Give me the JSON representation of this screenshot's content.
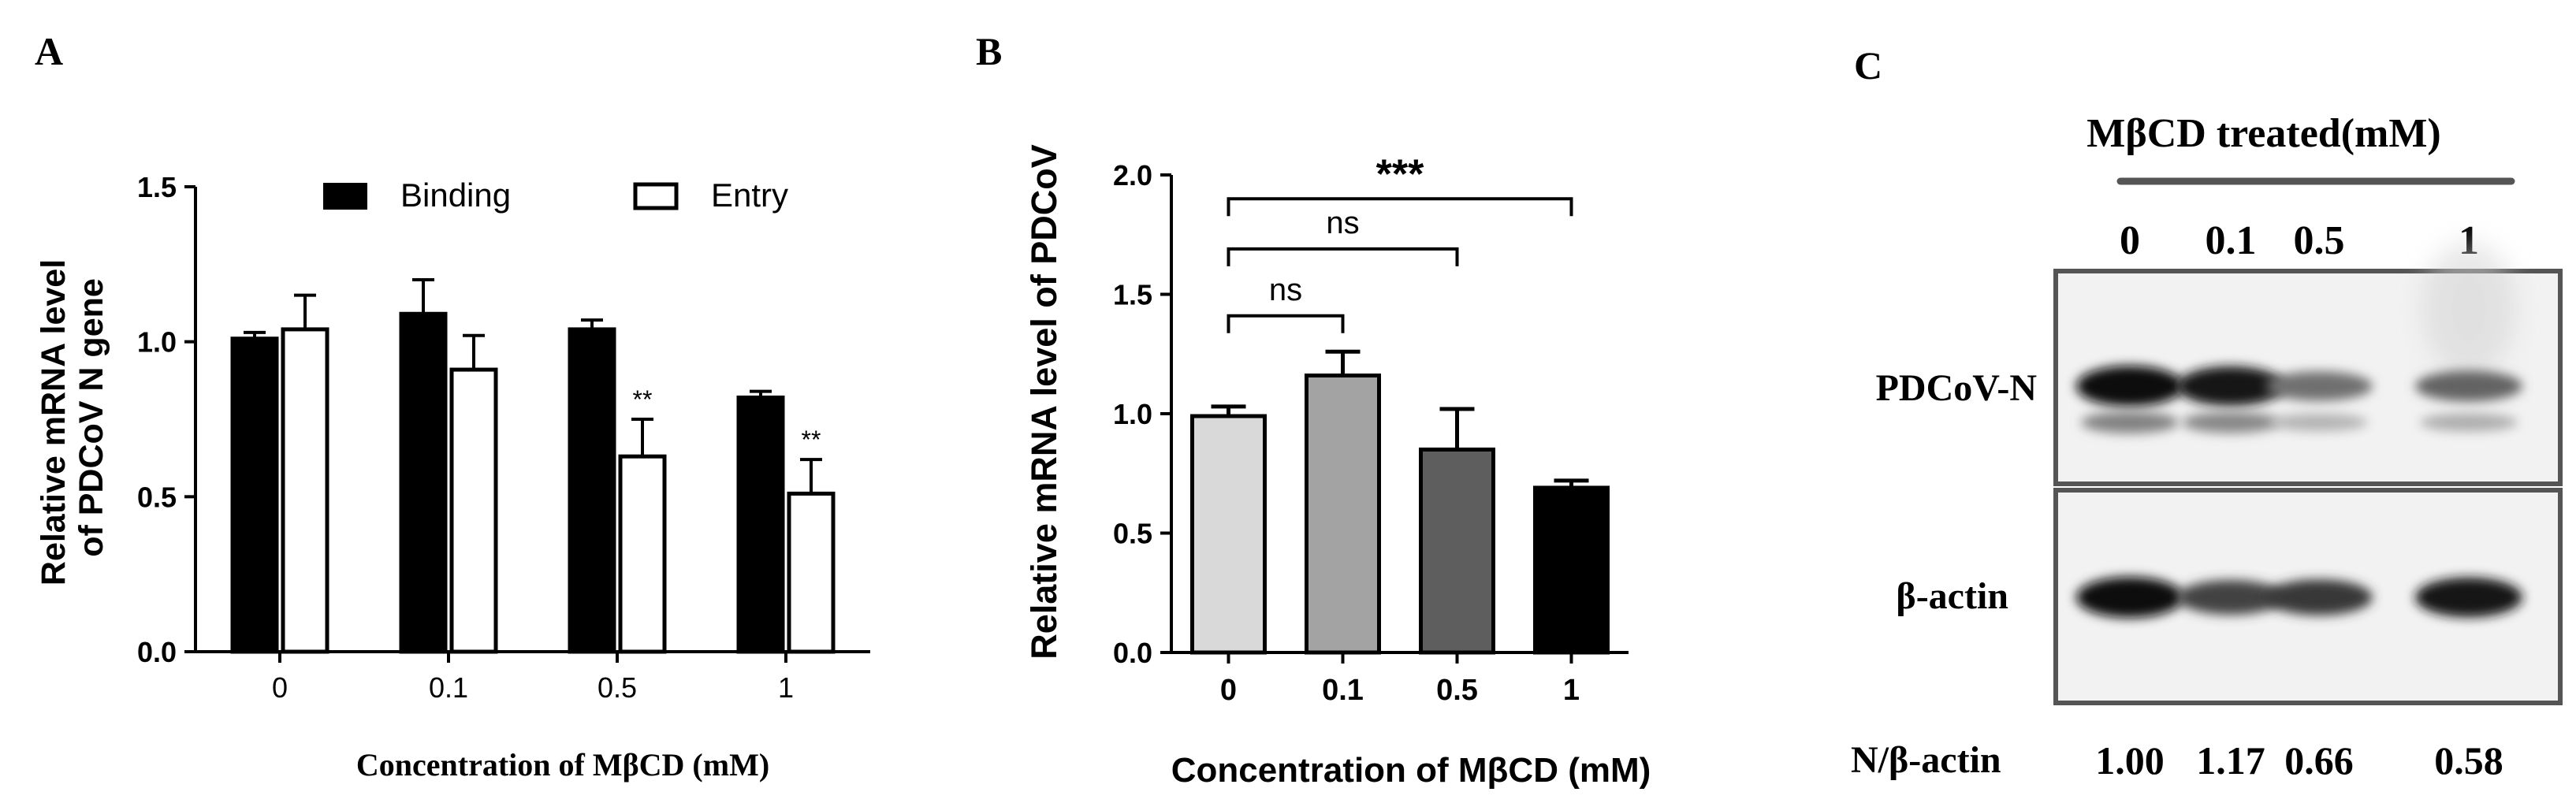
{
  "chart_data": [
    {
      "panel": "A",
      "type": "bar",
      "categories": [
        "0",
        "0.1",
        "0.5",
        "1"
      ],
      "series": [
        {
          "name": "Binding",
          "fill": "#000000",
          "values": [
            1.01,
            1.09,
            1.04,
            0.82
          ],
          "errors": [
            0.02,
            0.11,
            0.03,
            0.02
          ],
          "sig": [
            "",
            "",
            "",
            ""
          ]
        },
        {
          "name": "Entry",
          "fill": "#ffffff",
          "values": [
            1.04,
            0.91,
            0.63,
            0.51
          ],
          "errors": [
            0.11,
            0.11,
            0.12,
            0.11
          ],
          "sig": [
            "",
            "",
            "**",
            "**"
          ]
        }
      ],
      "ylim": [
        0,
        1.5
      ],
      "yticks": [
        "0.0",
        "0.5",
        "1.0",
        "1.5"
      ],
      "ylabel_lines": [
        "Relative mRNA level",
        "of PDCoV N gene"
      ],
      "xlabel": "Concentration of MβCD (mM)"
    },
    {
      "panel": "B",
      "type": "bar",
      "categories": [
        "0",
        "0.1",
        "0.5",
        "1"
      ],
      "values": [
        0.99,
        1.16,
        0.85,
        0.69
      ],
      "errors": [
        0.04,
        0.1,
        0.17,
        0.03
      ],
      "colors": [
        "#d9d9d9",
        "#a3a3a3",
        "#5e5e5e",
        "#000000"
      ],
      "ylim": [
        0,
        2.0
      ],
      "yticks": [
        "0.0",
        "0.5",
        "1.0",
        "1.5",
        "2.0"
      ],
      "ylabel": "Relative mRNA level of PDCoV",
      "xlabel": "Concentration of MβCD (mM)",
      "comparisons": [
        {
          "from": 0,
          "to": 1,
          "level": 1.41,
          "label": "ns"
        },
        {
          "from": 0,
          "to": 2,
          "level": 1.69,
          "label": "ns"
        },
        {
          "from": 0,
          "to": 3,
          "level": 1.9,
          "label": "***"
        }
      ]
    },
    {
      "panel": "C",
      "type": "table",
      "title": "MβCD treated(mM)",
      "lanes": [
        "0",
        "0.1",
        "0.5",
        "1"
      ],
      "rows": [
        {
          "label": "PDCoV-N",
          "intensities": [
            1.0,
            0.95,
            0.55,
            0.6
          ]
        },
        {
          "label": "β-actin",
          "intensities": [
            1.0,
            0.75,
            0.8,
            0.95
          ]
        }
      ],
      "ratio_label": "N/β-actin",
      "ratios": [
        "1.00",
        "1.17",
        "0.66",
        "0.58"
      ]
    }
  ],
  "panel_labels": {
    "a": "A",
    "b": "B",
    "c": "C"
  }
}
